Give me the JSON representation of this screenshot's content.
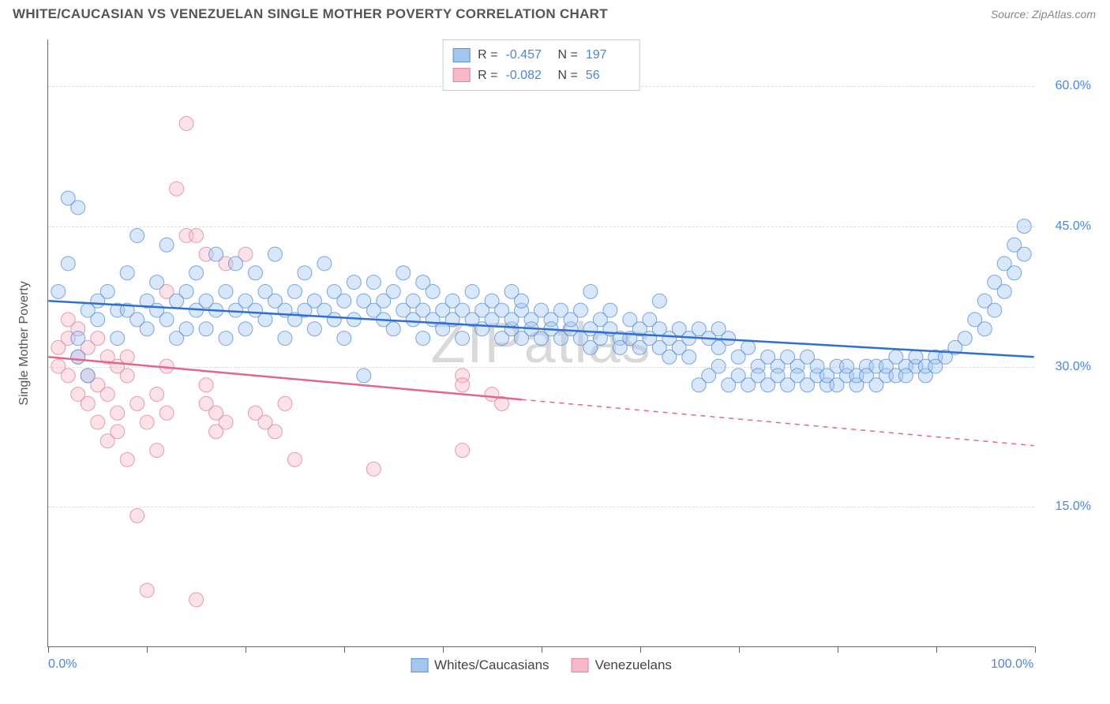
{
  "title": "WHITE/CAUCASIAN VS VENEZUELAN SINGLE MOTHER POVERTY CORRELATION CHART",
  "source": "Source: ZipAtlas.com",
  "watermark": "ZIPatlas",
  "chart": {
    "type": "scatter",
    "background_color": "#ffffff",
    "grid_color": "#dddddd",
    "axis_color": "#666666",
    "label_color": "#4a86e8",
    "text_color": "#555555",
    "y_axis_title": "Single Mother Poverty",
    "y_axis_title_fontsize": 16,
    "tick_label_fontsize": 16,
    "xlim": [
      0,
      100
    ],
    "ylim": [
      0,
      65
    ],
    "x_ticks": [
      0,
      10,
      20,
      30,
      40,
      50,
      60,
      70,
      80,
      90,
      100
    ],
    "x_tick_labels": {
      "0": "0.0%",
      "100": "100.0%"
    },
    "y_gridlines": [
      15,
      30,
      45,
      60
    ],
    "y_tick_labels": {
      "15": "15.0%",
      "30": "30.0%",
      "45": "45.0%",
      "60": "60.0%"
    },
    "marker_radius": 9,
    "marker_opacity": 0.42,
    "marker_stroke_opacity": 0.8,
    "trend_line_width": 2.5,
    "series": [
      {
        "name": "Whites/Caucasians",
        "fill_color": "#a3c5f0",
        "stroke_color": "#5a93da",
        "trend_color": "#2f6fd0",
        "R": "-0.457",
        "N": "197",
        "trend": {
          "x1": 0,
          "y1": 37.0,
          "x2": 100,
          "y2": 31.0,
          "solid_until_x": 100
        },
        "points": [
          [
            2,
            48
          ],
          [
            3,
            47
          ],
          [
            1,
            38
          ],
          [
            2,
            41
          ],
          [
            4,
            36
          ],
          [
            3,
            31
          ],
          [
            3,
            33
          ],
          [
            4,
            29
          ],
          [
            5,
            35
          ],
          [
            5,
            37
          ],
          [
            6,
            38
          ],
          [
            7,
            36
          ],
          [
            7,
            33
          ],
          [
            8,
            40
          ],
          [
            8,
            36
          ],
          [
            9,
            44
          ],
          [
            9,
            35
          ],
          [
            10,
            37
          ],
          [
            10,
            34
          ],
          [
            11,
            36
          ],
          [
            11,
            39
          ],
          [
            12,
            43
          ],
          [
            12,
            35
          ],
          [
            13,
            37
          ],
          [
            13,
            33
          ],
          [
            14,
            38
          ],
          [
            14,
            34
          ],
          [
            15,
            36
          ],
          [
            15,
            40
          ],
          [
            16,
            37
          ],
          [
            16,
            34
          ],
          [
            17,
            42
          ],
          [
            17,
            36
          ],
          [
            18,
            38
          ],
          [
            18,
            33
          ],
          [
            19,
            41
          ],
          [
            19,
            36
          ],
          [
            20,
            37
          ],
          [
            20,
            34
          ],
          [
            21,
            40
          ],
          [
            21,
            36
          ],
          [
            22,
            38
          ],
          [
            22,
            35
          ],
          [
            23,
            37
          ],
          [
            23,
            42
          ],
          [
            24,
            36
          ],
          [
            24,
            33
          ],
          [
            25,
            38
          ],
          [
            25,
            35
          ],
          [
            26,
            40
          ],
          [
            26,
            36
          ],
          [
            27,
            37
          ],
          [
            27,
            34
          ],
          [
            28,
            41
          ],
          [
            28,
            36
          ],
          [
            29,
            38
          ],
          [
            29,
            35
          ],
          [
            30,
            37
          ],
          [
            30,
            33
          ],
          [
            31,
            39
          ],
          [
            31,
            35
          ],
          [
            32,
            37
          ],
          [
            32,
            29
          ],
          [
            33,
            36
          ],
          [
            33,
            39
          ],
          [
            34,
            35
          ],
          [
            34,
            37
          ],
          [
            35,
            38
          ],
          [
            35,
            34
          ],
          [
            36,
            36
          ],
          [
            36,
            40
          ],
          [
            37,
            35
          ],
          [
            37,
            37
          ],
          [
            38,
            36
          ],
          [
            38,
            33
          ],
          [
            39,
            38
          ],
          [
            39,
            35
          ],
          [
            40,
            36
          ],
          [
            40,
            34
          ],
          [
            41,
            37
          ],
          [
            41,
            35
          ],
          [
            42,
            36
          ],
          [
            42,
            33
          ],
          [
            43,
            38
          ],
          [
            43,
            35
          ],
          [
            44,
            34
          ],
          [
            44,
            36
          ],
          [
            45,
            35
          ],
          [
            45,
            37
          ],
          [
            46,
            33
          ],
          [
            46,
            36
          ],
          [
            47,
            34
          ],
          [
            47,
            35
          ],
          [
            48,
            36
          ],
          [
            48,
            33
          ],
          [
            49,
            35
          ],
          [
            49,
            34
          ],
          [
            50,
            36
          ],
          [
            50,
            33
          ],
          [
            51,
            35
          ],
          [
            51,
            34
          ],
          [
            52,
            33
          ],
          [
            52,
            36
          ],
          [
            53,
            34
          ],
          [
            53,
            35
          ],
          [
            54,
            33
          ],
          [
            54,
            36
          ],
          [
            55,
            34
          ],
          [
            55,
            32
          ],
          [
            56,
            35
          ],
          [
            56,
            33
          ],
          [
            57,
            34
          ],
          [
            57,
            36
          ],
          [
            58,
            33
          ],
          [
            58,
            32
          ],
          [
            59,
            35
          ],
          [
            59,
            33
          ],
          [
            60,
            34
          ],
          [
            60,
            32
          ],
          [
            61,
            33
          ],
          [
            61,
            35
          ],
          [
            62,
            32
          ],
          [
            62,
            34
          ],
          [
            63,
            33
          ],
          [
            63,
            31
          ],
          [
            64,
            34
          ],
          [
            64,
            32
          ],
          [
            65,
            33
          ],
          [
            65,
            31
          ],
          [
            66,
            34
          ],
          [
            66,
            28
          ],
          [
            67,
            33
          ],
          [
            67,
            29
          ],
          [
            68,
            32
          ],
          [
            68,
            30
          ],
          [
            69,
            33
          ],
          [
            69,
            28
          ],
          [
            70,
            31
          ],
          [
            70,
            29
          ],
          [
            71,
            32
          ],
          [
            71,
            28
          ],
          [
            72,
            30
          ],
          [
            72,
            29
          ],
          [
            73,
            31
          ],
          [
            73,
            28
          ],
          [
            74,
            30
          ],
          [
            74,
            29
          ],
          [
            75,
            31
          ],
          [
            75,
            28
          ],
          [
            76,
            30
          ],
          [
            76,
            29
          ],
          [
            77,
            28
          ],
          [
            77,
            31
          ],
          [
            78,
            29
          ],
          [
            78,
            30
          ],
          [
            79,
            28
          ],
          [
            79,
            29
          ],
          [
            80,
            30
          ],
          [
            80,
            28
          ],
          [
            81,
            29
          ],
          [
            81,
            30
          ],
          [
            82,
            28
          ],
          [
            82,
            29
          ],
          [
            83,
            30
          ],
          [
            83,
            29
          ],
          [
            84,
            28
          ],
          [
            84,
            30
          ],
          [
            85,
            29
          ],
          [
            85,
            30
          ],
          [
            86,
            29
          ],
          [
            86,
            31
          ],
          [
            87,
            30
          ],
          [
            87,
            29
          ],
          [
            88,
            30
          ],
          [
            88,
            31
          ],
          [
            89,
            29
          ],
          [
            89,
            30
          ],
          [
            90,
            31
          ],
          [
            90,
            30
          ],
          [
            91,
            31
          ],
          [
            92,
            32
          ],
          [
            93,
            33
          ],
          [
            94,
            35
          ],
          [
            95,
            37
          ],
          [
            96,
            39
          ],
          [
            97,
            41
          ],
          [
            98,
            43
          ],
          [
            99,
            45
          ],
          [
            99,
            42
          ],
          [
            98,
            40
          ],
          [
            97,
            38
          ],
          [
            96,
            36
          ],
          [
            95,
            34
          ],
          [
            38,
            39
          ],
          [
            48,
            37
          ],
          [
            55,
            38
          ],
          [
            62,
            37
          ],
          [
            68,
            34
          ],
          [
            47,
            38
          ]
        ]
      },
      {
        "name": "Venezuelans",
        "fill_color": "#f5b9c9",
        "stroke_color": "#e3849f",
        "trend_color": "#e3668b",
        "R": "-0.082",
        "N": "56",
        "trend": {
          "x1": 0,
          "y1": 31.0,
          "x2": 100,
          "y2": 21.5,
          "solid_until_x": 48
        },
        "points": [
          [
            1,
            32
          ],
          [
            1,
            30
          ],
          [
            2,
            33
          ],
          [
            2,
            29
          ],
          [
            2,
            35
          ],
          [
            3,
            31
          ],
          [
            3,
            27
          ],
          [
            3,
            34
          ],
          [
            4,
            32
          ],
          [
            4,
            26
          ],
          [
            4,
            29
          ],
          [
            5,
            33
          ],
          [
            5,
            24
          ],
          [
            5,
            28
          ],
          [
            6,
            31
          ],
          [
            6,
            22
          ],
          [
            6,
            27
          ],
          [
            7,
            30
          ],
          [
            7,
            25
          ],
          [
            7,
            23
          ],
          [
            8,
            29
          ],
          [
            8,
            20
          ],
          [
            8,
            31
          ],
          [
            9,
            14
          ],
          [
            9,
            26
          ],
          [
            10,
            6
          ],
          [
            10,
            24
          ],
          [
            11,
            27
          ],
          [
            11,
            21
          ],
          [
            12,
            25
          ],
          [
            12,
            30
          ],
          [
            14,
            56
          ],
          [
            15,
            5
          ],
          [
            16,
            26
          ],
          [
            17,
            25
          ],
          [
            18,
            24
          ],
          [
            13,
            49
          ],
          [
            14,
            44
          ],
          [
            15,
            44
          ],
          [
            12,
            38
          ],
          [
            16,
            28
          ],
          [
            17,
            23
          ],
          [
            16,
            42
          ],
          [
            18,
            41
          ],
          [
            20,
            42
          ],
          [
            21,
            25
          ],
          [
            22,
            24
          ],
          [
            23,
            23
          ],
          [
            24,
            26
          ],
          [
            25,
            20
          ],
          [
            33,
            19
          ],
          [
            42,
            29
          ],
          [
            42,
            28
          ],
          [
            42,
            21
          ],
          [
            45,
            27
          ],
          [
            46,
            26
          ]
        ]
      }
    ],
    "legend_top": {
      "r_label": "R =",
      "n_label": "N ="
    },
    "legend_bottom_fontsize": 17
  }
}
